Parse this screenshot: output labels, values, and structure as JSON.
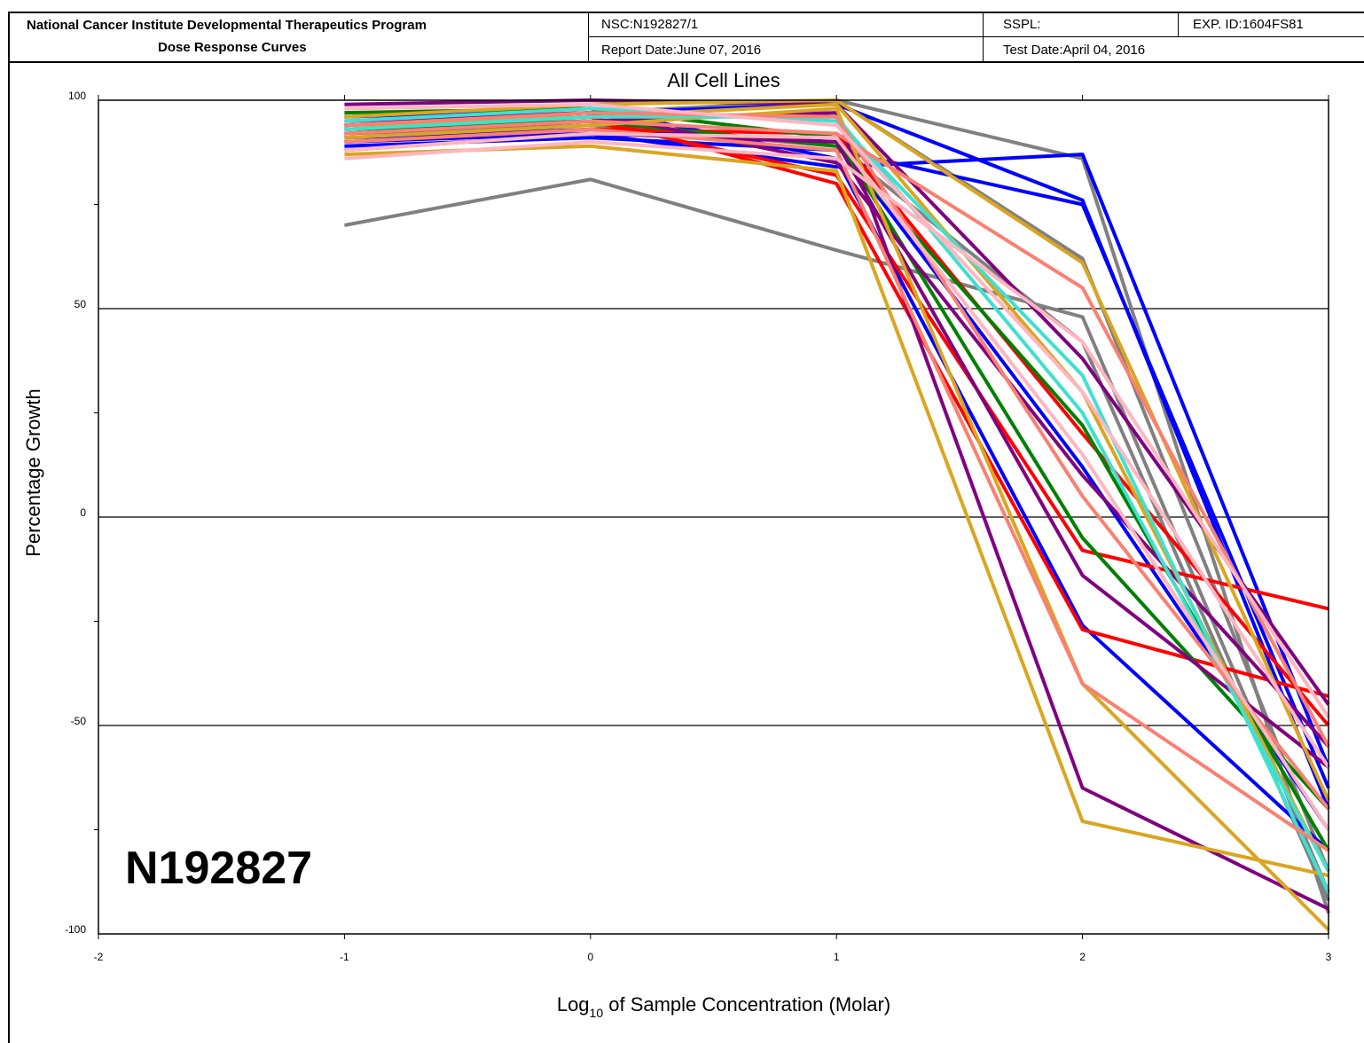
{
  "header": {
    "program_line1": "National Cancer Institute Developmental Therapeutics Program",
    "program_line2": "Dose Response Curves",
    "nsc": "NSC:N192827/1",
    "report_date": "Report Date:June 07, 2016",
    "sspl": "SSPL:",
    "test_date": "Test Date:April 04, 2016",
    "exp_id": "EXP. ID:1604FS81"
  },
  "compound_label": "N192827",
  "colors": {
    "red": "#ff0000",
    "blue": "#0000ff",
    "gray": "#808080",
    "green": "#008000",
    "purple": "#800080",
    "goldenrod": "#daa520",
    "turquoise": "#40e0d0",
    "salmon": "#fa8072",
    "pink": "#ffb6c1"
  },
  "chart_data": {
    "type": "line",
    "title": "All Cell Lines",
    "xlabel": "Log10 of Sample Concentration (Molar)",
    "xlabel_base": "Log",
    "xlabel_sub": "10",
    "xlabel_rest": " of Sample Concentration (Molar)",
    "ylabel": "Percentage Growth",
    "xlim": [
      -2,
      3
    ],
    "ylim": [
      -100,
      100
    ],
    "x_ticks": [
      -2,
      -1,
      0,
      1,
      2,
      3
    ],
    "y_ticks": [
      100,
      50,
      0,
      -50,
      -100
    ],
    "x_tick_labels": [
      "-2",
      "-1",
      "0",
      "1",
      "2",
      "3"
    ],
    "y_tick_labels": [
      "100",
      "50",
      "0",
      "-50",
      "-100"
    ],
    "gridlines_y": [
      50,
      0,
      -50
    ],
    "x": [
      -1,
      0,
      1,
      2,
      3
    ],
    "series": [
      {
        "color": "gray",
        "values": [
          70,
          81,
          64,
          48,
          -90
        ]
      },
      {
        "color": "gray",
        "values": [
          93,
          96,
          100,
          86,
          -95
        ]
      },
      {
        "color": "gray",
        "values": [
          95,
          97,
          100,
          62,
          -85
        ]
      },
      {
        "color": "gray",
        "values": [
          92,
          94,
          89,
          42,
          -92
        ]
      },
      {
        "color": "blue",
        "values": [
          90,
          92,
          84,
          87,
          -60
        ]
      },
      {
        "color": "blue",
        "values": [
          94,
          97,
          99,
          76,
          -70
        ]
      },
      {
        "color": "blue",
        "values": [
          89,
          91,
          88,
          75,
          -65
        ]
      },
      {
        "color": "blue",
        "values": [
          96,
          98,
          86,
          -26,
          -80
        ]
      },
      {
        "color": "blue",
        "values": [
          91,
          93,
          90,
          12,
          -75
        ]
      },
      {
        "color": "red",
        "values": [
          92,
          95,
          82,
          -8,
          -22
        ]
      },
      {
        "color": "red",
        "values": [
          94,
          96,
          80,
          -27,
          -43
        ]
      },
      {
        "color": "red",
        "values": [
          90,
          93,
          92,
          20,
          -50
        ]
      },
      {
        "color": "green",
        "values": [
          97,
          98,
          91,
          -5,
          -70
        ]
      },
      {
        "color": "green",
        "values": [
          93,
          95,
          89,
          22,
          -80
        ]
      },
      {
        "color": "purple",
        "values": [
          99,
          100,
          99,
          38,
          -45
        ]
      },
      {
        "color": "purple",
        "values": [
          92,
          95,
          97,
          -65,
          -94
        ]
      },
      {
        "color": "purple",
        "values": [
          88,
          92,
          90,
          -14,
          -60
        ]
      },
      {
        "color": "purple",
        "values": [
          95,
          97,
          85,
          10,
          -55
        ]
      },
      {
        "color": "goldenrod",
        "values": [
          96,
          99,
          100,
          61,
          -68
        ]
      },
      {
        "color": "goldenrod",
        "values": [
          87,
          89,
          83,
          -73,
          -86
        ]
      },
      {
        "color": "goldenrod",
        "values": [
          91,
          94,
          98,
          -40,
          -99
        ]
      },
      {
        "color": "goldenrod",
        "values": [
          94,
          96,
          99,
          30,
          -85
        ]
      },
      {
        "color": "turquoise",
        "values": [
          95,
          98,
          95,
          34,
          -90
        ]
      },
      {
        "color": "turquoise",
        "values": [
          93,
          96,
          96,
          25,
          -85
        ]
      },
      {
        "color": "salmon",
        "values": [
          92,
          95,
          92,
          55,
          -55
        ]
      },
      {
        "color": "salmon",
        "values": [
          90,
          93,
          88,
          -40,
          -80
        ]
      },
      {
        "color": "salmon",
        "values": [
          94,
          97,
          96,
          5,
          -70
        ]
      },
      {
        "color": "pink",
        "values": [
          86,
          90,
          86,
          42,
          -48
        ]
      },
      {
        "color": "pink",
        "values": [
          98,
          99,
          94,
          30,
          -60
        ]
      },
      {
        "color": "pink",
        "values": [
          88,
          92,
          91,
          15,
          -75
        ]
      }
    ]
  }
}
